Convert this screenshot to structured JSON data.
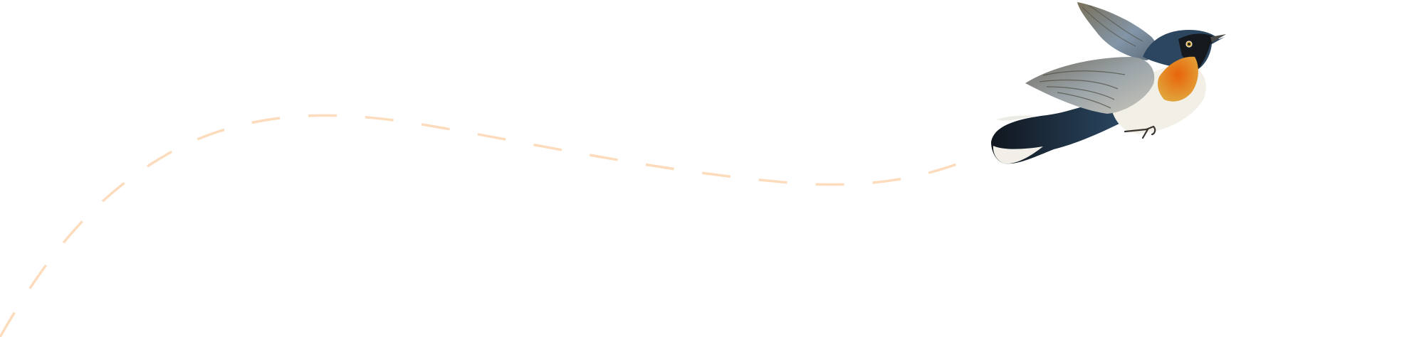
{
  "illustration": {
    "subject": "bird-icon",
    "colors": {
      "background": "#ffffff",
      "flight_path": "#fcdcbc",
      "throat": "#e0700f",
      "head": "#2c4660",
      "mask": "#15181c",
      "wing": "#8a8e8c",
      "tail": "#1c2a3a",
      "belly": "#f2efe6"
    }
  }
}
